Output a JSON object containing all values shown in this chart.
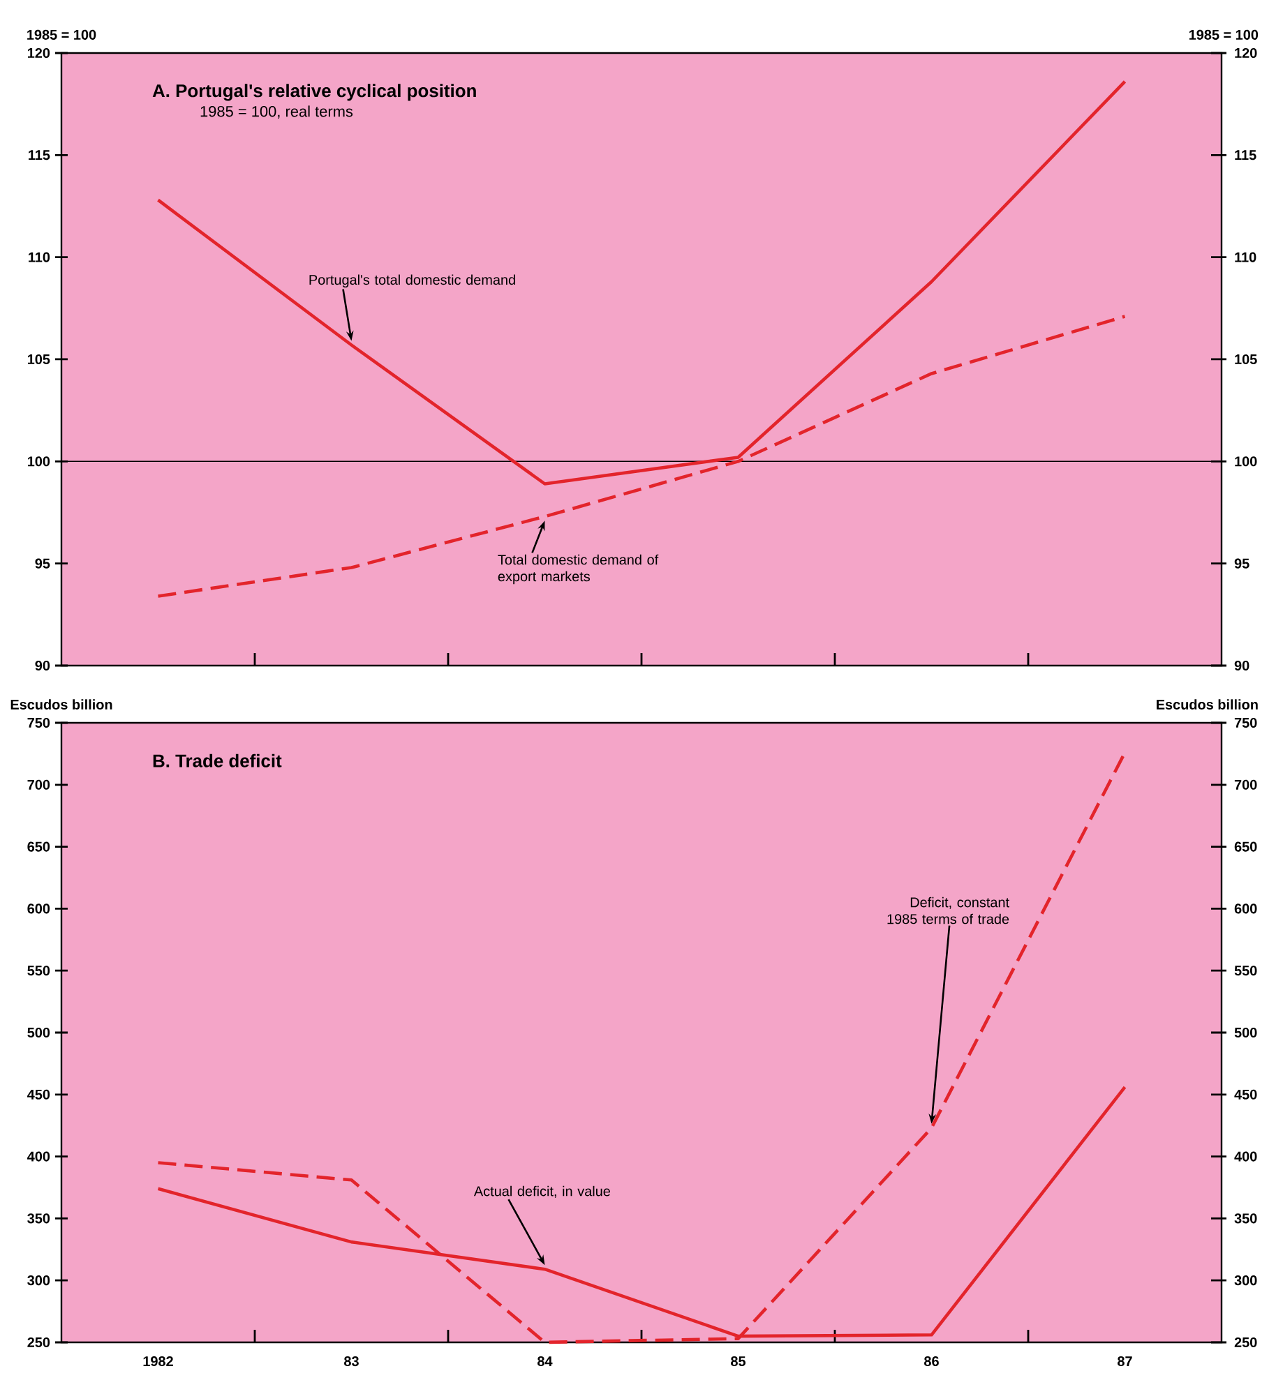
{
  "chart_data": [
    {
      "type": "line",
      "title": "A.  Portugal's relative cyclical position",
      "subtitle": "1985 = 100, real terms",
      "ylabel": "1985 = 100",
      "y2label": "1985 = 100",
      "categories": [
        "1982",
        "83",
        "84",
        "85",
        "86",
        "87"
      ],
      "series": [
        {
          "color": "#e3242b",
          "line_style": "solid",
          "values": [
            112.8,
            105.7,
            98.9,
            100.2,
            108.8,
            118.6
          ]
        },
        {
          "color": "#e3242b",
          "line_style": "dashed",
          "values": [
            93.4,
            94.8,
            97.3,
            100.0,
            104.3,
            107.1
          ]
        }
      ],
      "ylim": [
        90,
        120
      ],
      "yticks": [
        90,
        95,
        100,
        105,
        110,
        115,
        120
      ],
      "y2lim": [
        90,
        120
      ],
      "y2ticks": [
        90,
        95,
        100,
        105,
        110,
        115,
        120
      ],
      "ref_lines": [
        {
          "axis": "y",
          "value": 100,
          "color": "#000000"
        }
      ],
      "tick_labels": "y",
      "annotations": [
        {
          "text": "Portugal's total domestic demand",
          "x": "83",
          "y": 105.7
        },
        {
          "text": "Total domestic demand of export markets",
          "x": "84",
          "y": 97.3
        }
      ]
    },
    {
      "type": "line",
      "title": "B.  Trade deficit",
      "ylabel": "Escudos billion",
      "y2label": "Escudos billion",
      "categories": [
        "1982",
        "83",
        "84",
        "85",
        "86",
        "87"
      ],
      "series": [
        {
          "color": "#e3242b",
          "line_style": "solid",
          "values": [
            374,
            331,
            309,
            255,
            256,
            456
          ]
        },
        {
          "color": "#e3242b",
          "line_style": "dashed",
          "values": [
            395,
            381,
            250,
            253,
            423,
            726
          ]
        }
      ],
      "ylim": [
        250,
        750
      ],
      "yticks": [
        250,
        300,
        350,
        400,
        450,
        500,
        550,
        600,
        650,
        700,
        750
      ],
      "y2lim": [
        250,
        750
      ],
      "y2ticks": [
        250,
        300,
        350,
        400,
        450,
        500,
        550,
        600,
        650,
        700,
        750
      ],
      "annotations": [
        {
          "text": "Actual deficit, in value",
          "x": "84",
          "y": 309
        },
        {
          "text": "Deficit, constant 1985 terms of trade",
          "x": "86",
          "y": 423
        }
      ]
    }
  ]
}
